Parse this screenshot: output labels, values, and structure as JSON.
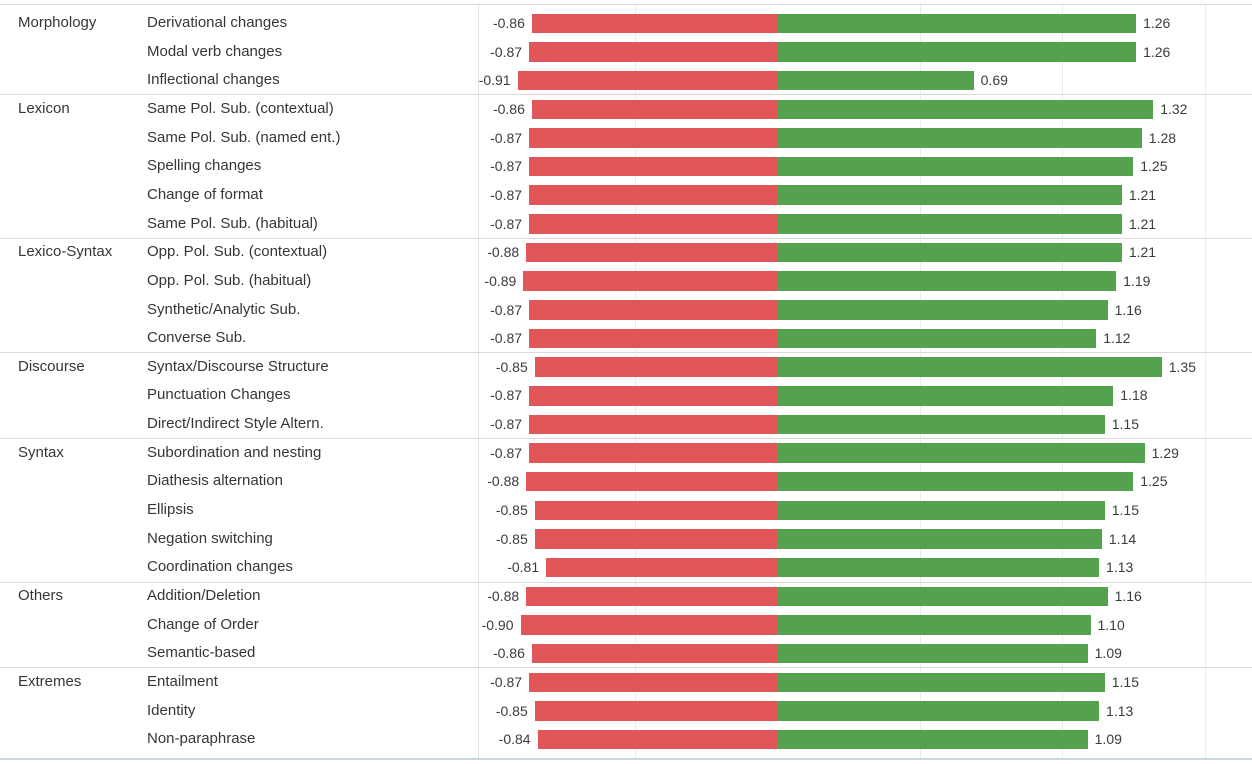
{
  "colors": {
    "negative_bar": "#e15759",
    "positive_bar": "#55a24e",
    "gridline": "#ebebeb",
    "pane_divider": "#e2e2e2",
    "group_separator": "#d9d9d9",
    "bottom_border": "#ccd6dc",
    "text": "#363636"
  },
  "chart_data": {
    "type": "bar",
    "variant": "diverging-horizontal",
    "title": "",
    "xlabel": "",
    "ylabel": "",
    "xlim": [
      -1.05,
      1.67
    ],
    "gridlines": [
      -0.5,
      0.5,
      1.0,
      1.5
    ],
    "legend": [],
    "groups": [
      {
        "name": "Morphology",
        "items": [
          {
            "label": "Derivational changes",
            "neg": -0.86,
            "pos": 1.26,
            "neg_label": "-0.86",
            "pos_label": "1.26"
          },
          {
            "label": "Modal verb changes",
            "neg": -0.87,
            "pos": 1.26,
            "neg_label": "-0.87",
            "pos_label": "1.26"
          },
          {
            "label": "Inflectional changes",
            "neg": -0.91,
            "pos": 0.69,
            "neg_label": "-0.91",
            "pos_label": "0.69"
          }
        ]
      },
      {
        "name": "Lexicon",
        "items": [
          {
            "label": "Same Pol. Sub. (contextual)",
            "neg": -0.86,
            "pos": 1.32,
            "neg_label": "-0.86",
            "pos_label": "1.32"
          },
          {
            "label": "Same Pol. Sub. (named ent.)",
            "neg": -0.87,
            "pos": 1.28,
            "neg_label": "-0.87",
            "pos_label": "1.28"
          },
          {
            "label": "Spelling changes",
            "neg": -0.87,
            "pos": 1.25,
            "neg_label": "-0.87",
            "pos_label": "1.25"
          },
          {
            "label": "Change of format",
            "neg": -0.87,
            "pos": 1.21,
            "neg_label": "-0.87",
            "pos_label": "1.21"
          },
          {
            "label": "Same Pol. Sub. (habitual)",
            "neg": -0.87,
            "pos": 1.21,
            "neg_label": "-0.87",
            "pos_label": "1.21"
          }
        ]
      },
      {
        "name": "Lexico-Syntax",
        "items": [
          {
            "label": "Opp. Pol. Sub. (contextual)",
            "neg": -0.88,
            "pos": 1.21,
            "neg_label": "-0.88",
            "pos_label": "1.21"
          },
          {
            "label": "Opp. Pol. Sub. (habitual)",
            "neg": -0.89,
            "pos": 1.19,
            "neg_label": "-0.89",
            "pos_label": "1.19"
          },
          {
            "label": "Synthetic/Analytic Sub.",
            "neg": -0.87,
            "pos": 1.16,
            "neg_label": "-0.87",
            "pos_label": "1.16"
          },
          {
            "label": "Converse Sub.",
            "neg": -0.87,
            "pos": 1.12,
            "neg_label": "-0.87",
            "pos_label": "1.12"
          }
        ]
      },
      {
        "name": "Discourse",
        "items": [
          {
            "label": "Syntax/Discourse Structure",
            "neg": -0.85,
            "pos": 1.35,
            "neg_label": "-0.85",
            "pos_label": "1.35"
          },
          {
            "label": "Punctuation Changes",
            "neg": -0.87,
            "pos": 1.18,
            "neg_label": "-0.87",
            "pos_label": "1.18"
          },
          {
            "label": "Direct/Indirect Style Altern.",
            "neg": -0.87,
            "pos": 1.15,
            "neg_label": "-0.87",
            "pos_label": "1.15"
          }
        ]
      },
      {
        "name": "Syntax",
        "items": [
          {
            "label": "Subordination and nesting",
            "neg": -0.87,
            "pos": 1.29,
            "neg_label": "-0.87",
            "pos_label": "1.29"
          },
          {
            "label": "Diathesis alternation",
            "neg": -0.88,
            "pos": 1.25,
            "neg_label": "-0.88",
            "pos_label": "1.25"
          },
          {
            "label": "Ellipsis",
            "neg": -0.85,
            "pos": 1.15,
            "neg_label": "-0.85",
            "pos_label": "1.15"
          },
          {
            "label": "Negation switching",
            "neg": -0.85,
            "pos": 1.14,
            "neg_label": "-0.85",
            "pos_label": "1.14"
          },
          {
            "label": "Coordination changes",
            "neg": -0.81,
            "pos": 1.13,
            "neg_label": "-0.81",
            "pos_label": "1.13"
          }
        ]
      },
      {
        "name": "Others",
        "items": [
          {
            "label": "Addition/Deletion",
            "neg": -0.88,
            "pos": 1.16,
            "neg_label": "-0.88",
            "pos_label": "1.16"
          },
          {
            "label": "Change of Order",
            "neg": -0.9,
            "pos": 1.1,
            "neg_label": "-0.90",
            "pos_label": "1.10"
          },
          {
            "label": "Semantic-based",
            "neg": -0.86,
            "pos": 1.09,
            "neg_label": "-0.86",
            "pos_label": "1.09"
          }
        ]
      },
      {
        "name": "Extremes",
        "items": [
          {
            "label": "Entailment",
            "neg": -0.87,
            "pos": 1.15,
            "neg_label": "-0.87",
            "pos_label": "1.15"
          },
          {
            "label": "Identity",
            "neg": -0.85,
            "pos": 1.13,
            "neg_label": "-0.85",
            "pos_label": "1.13"
          },
          {
            "label": "Non-paraphrase",
            "neg": -0.84,
            "pos": 1.09,
            "neg_label": "-0.84",
            "pos_label": "1.09"
          }
        ]
      }
    ]
  }
}
